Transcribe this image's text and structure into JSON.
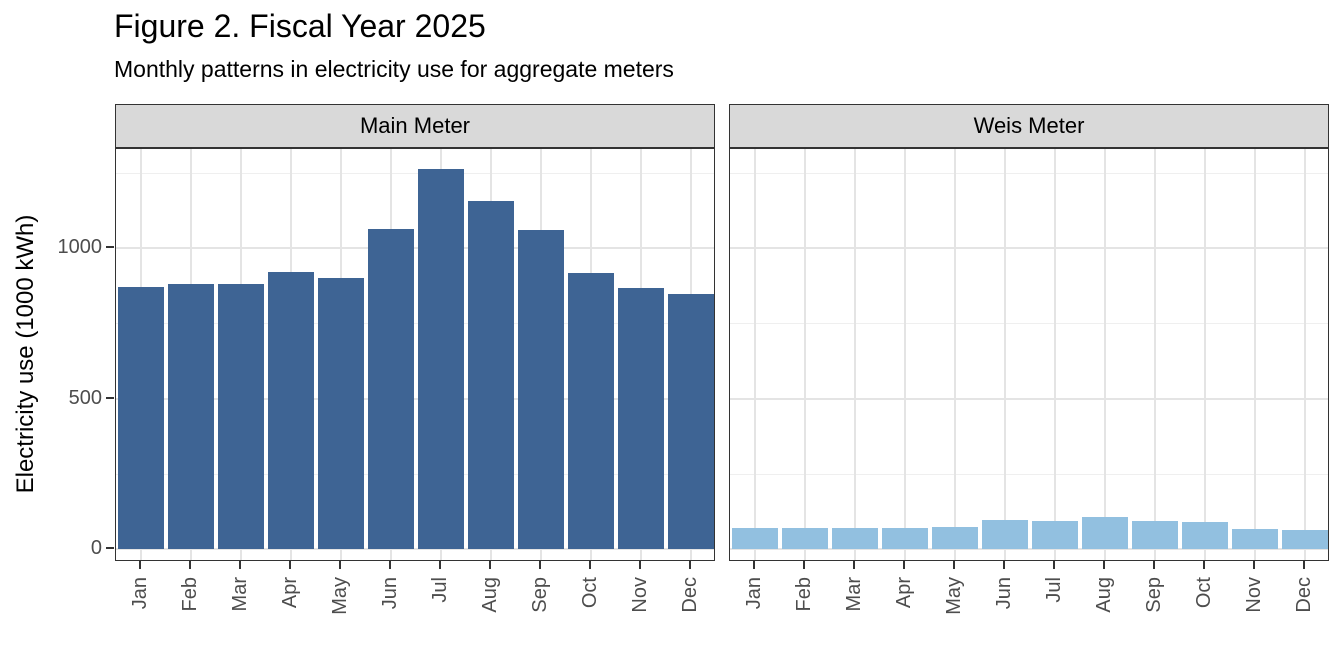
{
  "chart_data": {
    "type": "bar",
    "title": "Figure 2. Fiscal Year 2025",
    "subtitle": "Monthly patterns in electricity use for aggregate meters",
    "xlabel": "",
    "ylabel": "Electricity use (1000 kWh)",
    "categories": [
      "Jan",
      "Feb",
      "Mar",
      "Apr",
      "May",
      "Jun",
      "Jul",
      "Aug",
      "Sep",
      "Oct",
      "Nov",
      "Dec"
    ],
    "facets": [
      {
        "label": "Main Meter",
        "color": "#3E6494",
        "values": [
          872,
          879,
          879,
          920,
          900,
          1063,
          1262,
          1156,
          1060,
          916,
          866,
          848
        ]
      },
      {
        "label": "Weis Meter",
        "color": "#92C0E0",
        "values": [
          70,
          69,
          69,
          69,
          73,
          95,
          92,
          106,
          94,
          89,
          66,
          63
        ]
      }
    ],
    "y_major_ticks": [
      0,
      500,
      1000
    ],
    "y_minor_ticks": [
      250,
      750,
      1250
    ],
    "ylim": [
      -43,
      1330
    ],
    "grid": true,
    "legend_position": "none",
    "x_tick_rotation_degrees": 90,
    "units": "1000 kWh"
  },
  "style": {
    "strip_fill": "#D9D9D9",
    "panel_border": "#333333",
    "grid_major": "#E4E4E4",
    "grid_minor": "#EFEFEF",
    "tick_label_color": "#4D4D4D",
    "text_color": "#000000",
    "background": "#FFFFFF"
  }
}
